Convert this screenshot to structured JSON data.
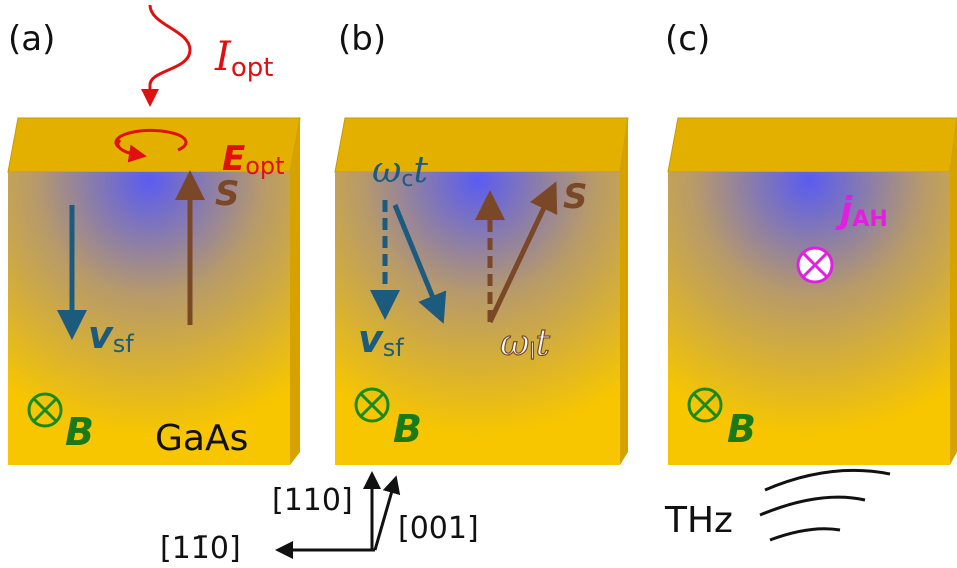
{
  "panel_labels": [
    "(a)",
    "(b)",
    "(c)"
  ],
  "panel_a": {
    "intensity": {
      "symbol": "I",
      "sub": "opt"
    },
    "field": {
      "symbol": "E",
      "sub": "opt"
    },
    "spin": "S",
    "velocity": {
      "symbol": "v",
      "sub": "sf"
    },
    "magnetic": "B",
    "material": "GaAs"
  },
  "panel_b": {
    "cyclotron": {
      "symbol": "ω",
      "sub": "c",
      "suffix": "t"
    },
    "larmor": {
      "symbol": "ω",
      "sub": "l",
      "suffix": "t"
    },
    "spin": "S",
    "velocity": {
      "symbol": "v",
      "sub": "sf"
    },
    "magnetic": "B"
  },
  "panel_c": {
    "current": {
      "symbol": "j",
      "sub": "AH"
    },
    "magnetic": "B",
    "emission": "THz"
  },
  "axes": {
    "vertical": "[110]",
    "horizontal": "[11̄0]",
    "tilted": "[001]"
  }
}
